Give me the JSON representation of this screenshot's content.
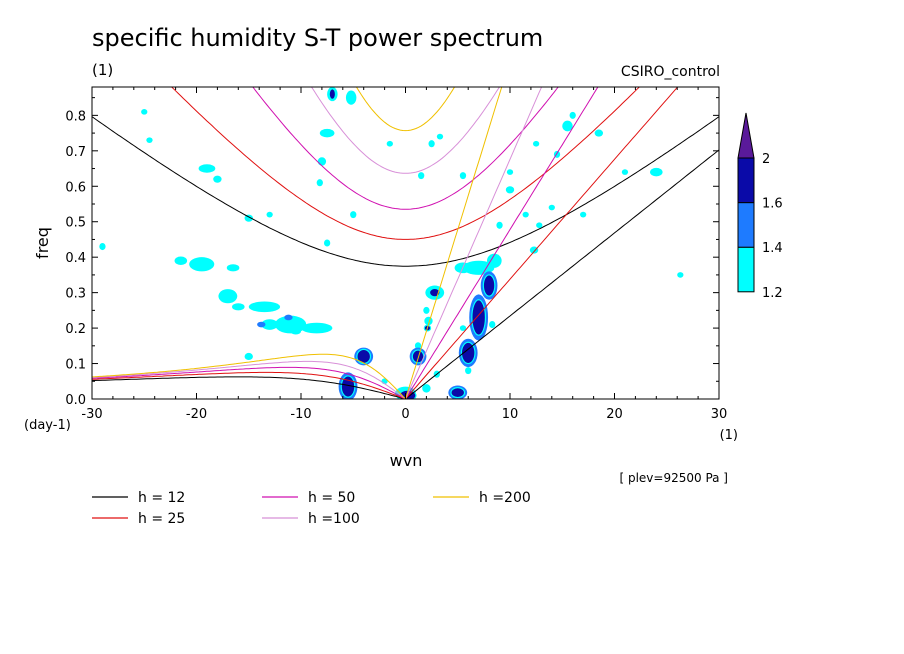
{
  "chart_data": {
    "type": "heatmap",
    "title": "specific humidity S-T power spectrum",
    "subtitle_left": "(1)",
    "subtitle_right": "CSIRO_control",
    "xlabel": "wvn",
    "ylabel": "freq",
    "x_unit": "(1)",
    "y_unit": "(day-1)",
    "note": "[ plev=92500 Pa ]",
    "xlim": [
      -30,
      30
    ],
    "ylim": [
      0,
      0.88
    ],
    "x_ticks": [
      -30,
      -20,
      -10,
      0,
      10,
      20,
      30
    ],
    "x_tick_labels": [
      "-30",
      "-20",
      "-10",
      "0",
      "10",
      "20",
      "30"
    ],
    "y_ticks": [
      0,
      0.1,
      0.2,
      0.3,
      0.4,
      0.5,
      0.6,
      0.7,
      0.8
    ],
    "y_tick_labels": [
      "0.0",
      "0.1",
      "0.2",
      "0.3",
      "0.4",
      "0.5",
      "0.6",
      "0.7",
      "0.8"
    ],
    "colorbar": {
      "levels": [
        1.2,
        1.4,
        1.6,
        2
      ],
      "labels": [
        "1.2",
        "1.4",
        "1.6",
        "2"
      ],
      "colors": [
        "#00ffff",
        "#1e7bff",
        "#0a0aa8",
        "#5a1a9a"
      ]
    },
    "dispersion_curves": [
      {
        "label": "h = 12",
        "h": 12,
        "color": "#000000"
      },
      {
        "label": "h = 25",
        "h": 25,
        "color": "#e01010"
      },
      {
        "label": "h = 50",
        "h": 50,
        "color": "#d010b0"
      },
      {
        "label": "h =100",
        "h": 100,
        "color": "#d890d8"
      },
      {
        "label": "h =200",
        "h": 200,
        "color": "#f0c000"
      }
    ],
    "contour_regions": [
      {
        "x": -29,
        "y": 0.43,
        "rx": 0.3,
        "ry": 0.01,
        "level": 1.2
      },
      {
        "x": -25,
        "y": 0.81,
        "rx": 0.3,
        "ry": 0.008,
        "level": 1.2
      },
      {
        "x": -24.5,
        "y": 0.73,
        "rx": 0.3,
        "ry": 0.008,
        "level": 1.2
      },
      {
        "x": -19,
        "y": 0.65,
        "rx": 0.8,
        "ry": 0.012,
        "level": 1.2
      },
      {
        "x": -18,
        "y": 0.62,
        "rx": 0.4,
        "ry": 0.01,
        "level": 1.2
      },
      {
        "x": -15,
        "y": 0.51,
        "rx": 0.4,
        "ry": 0.01,
        "level": 1.2
      },
      {
        "x": -13,
        "y": 0.52,
        "rx": 0.3,
        "ry": 0.008,
        "level": 1.2
      },
      {
        "x": -19.5,
        "y": 0.38,
        "rx": 1.2,
        "ry": 0.02,
        "level": 1.2
      },
      {
        "x": -21.5,
        "y": 0.39,
        "rx": 0.6,
        "ry": 0.012,
        "level": 1.2
      },
      {
        "x": -16.5,
        "y": 0.37,
        "rx": 0.6,
        "ry": 0.01,
        "level": 1.2
      },
      {
        "x": -17,
        "y": 0.29,
        "rx": 0.9,
        "ry": 0.02,
        "level": 1.2
      },
      {
        "x": -16,
        "y": 0.26,
        "rx": 0.6,
        "ry": 0.01,
        "level": 1.2
      },
      {
        "x": -13.5,
        "y": 0.26,
        "rx": 1.5,
        "ry": 0.015,
        "level": 1.2
      },
      {
        "x": -13,
        "y": 0.21,
        "rx": 0.8,
        "ry": 0.015,
        "level": 1.2
      },
      {
        "x": -11,
        "y": 0.21,
        "rx": 1.5,
        "ry": 0.025,
        "level": 1.2
      },
      {
        "x": -8.5,
        "y": 0.2,
        "rx": 1.5,
        "ry": 0.015,
        "level": 1.2
      },
      {
        "x": -13.8,
        "y": 0.21,
        "rx": 0.4,
        "ry": 0.008,
        "level": 1.4
      },
      {
        "x": -11.2,
        "y": 0.23,
        "rx": 0.4,
        "ry": 0.008,
        "level": 1.4
      },
      {
        "x": -15,
        "y": 0.12,
        "rx": 0.4,
        "ry": 0.01,
        "level": 1.2
      },
      {
        "x": -10.5,
        "y": 0.19,
        "rx": 0.5,
        "ry": 0.008,
        "level": 1.2
      },
      {
        "x": -7.5,
        "y": 0.44,
        "rx": 0.3,
        "ry": 0.01,
        "level": 1.2
      },
      {
        "x": -5,
        "y": 0.52,
        "rx": 0.3,
        "ry": 0.01,
        "level": 1.2
      },
      {
        "x": -8,
        "y": 0.67,
        "rx": 0.4,
        "ry": 0.012,
        "level": 1.2
      },
      {
        "x": -8.2,
        "y": 0.61,
        "rx": 0.3,
        "ry": 0.01,
        "level": 1.2
      },
      {
        "x": -7.5,
        "y": 0.75,
        "rx": 0.7,
        "ry": 0.012,
        "level": 1.2
      },
      {
        "x": -5.2,
        "y": 0.85,
        "rx": 0.5,
        "ry": 0.02,
        "level": 1.2
      },
      {
        "x": -1.5,
        "y": 0.72,
        "rx": 0.3,
        "ry": 0.008,
        "level": 1.2
      },
      {
        "x": -7,
        "y": 0.86,
        "rx": 0.5,
        "ry": 0.02,
        "level": 1.2
      },
      {
        "x": -7,
        "y": 0.86,
        "rx": 0.3,
        "ry": 0.015,
        "level": 1.6
      },
      {
        "x": 1.5,
        "y": 0.63,
        "rx": 0.3,
        "ry": 0.01,
        "level": 1.2
      },
      {
        "x": 5.5,
        "y": 0.63,
        "rx": 0.3,
        "ry": 0.01,
        "level": 1.2
      },
      {
        "x": 2.5,
        "y": 0.72,
        "rx": 0.3,
        "ry": 0.01,
        "level": 1.2
      },
      {
        "x": 3.3,
        "y": 0.74,
        "rx": 0.3,
        "ry": 0.008,
        "level": 1.2
      },
      {
        "x": 9,
        "y": 0.49,
        "rx": 0.3,
        "ry": 0.01,
        "level": 1.2
      },
      {
        "x": 11.5,
        "y": 0.52,
        "rx": 0.3,
        "ry": 0.008,
        "level": 1.2
      },
      {
        "x": 12.8,
        "y": 0.49,
        "rx": 0.3,
        "ry": 0.008,
        "level": 1.2
      },
      {
        "x": 14,
        "y": 0.54,
        "rx": 0.3,
        "ry": 0.008,
        "level": 1.2
      },
      {
        "x": 17,
        "y": 0.52,
        "rx": 0.3,
        "ry": 0.008,
        "level": 1.2
      },
      {
        "x": 12.3,
        "y": 0.42,
        "rx": 0.4,
        "ry": 0.01,
        "level": 1.2
      },
      {
        "x": 10,
        "y": 0.59,
        "rx": 0.4,
        "ry": 0.01,
        "level": 1.2
      },
      {
        "x": 10,
        "y": 0.64,
        "rx": 0.3,
        "ry": 0.008,
        "level": 1.2
      },
      {
        "x": 12.5,
        "y": 0.72,
        "rx": 0.3,
        "ry": 0.008,
        "level": 1.2
      },
      {
        "x": 14.5,
        "y": 0.69,
        "rx": 0.3,
        "ry": 0.01,
        "level": 1.2
      },
      {
        "x": 15.5,
        "y": 0.77,
        "rx": 0.5,
        "ry": 0.015,
        "level": 1.2
      },
      {
        "x": 16,
        "y": 0.8,
        "rx": 0.3,
        "ry": 0.01,
        "level": 1.2
      },
      {
        "x": 18.5,
        "y": 0.75,
        "rx": 0.4,
        "ry": 0.01,
        "level": 1.2
      },
      {
        "x": 21,
        "y": 0.64,
        "rx": 0.3,
        "ry": 0.008,
        "level": 1.2
      },
      {
        "x": 24,
        "y": 0.64,
        "rx": 0.6,
        "ry": 0.012,
        "level": 1.2
      },
      {
        "x": 26.3,
        "y": 0.35,
        "rx": 0.3,
        "ry": 0.008,
        "level": 1.2
      },
      {
        "x": 7,
        "y": 0.37,
        "rx": 1.5,
        "ry": 0.02,
        "level": 1.2
      },
      {
        "x": 8.5,
        "y": 0.39,
        "rx": 0.7,
        "ry": 0.02,
        "level": 1.2
      },
      {
        "x": 5.5,
        "y": 0.37,
        "rx": 0.8,
        "ry": 0.015,
        "level": 1.2
      },
      {
        "x": 2.8,
        "y": 0.3,
        "rx": 0.9,
        "ry": 0.02,
        "level": 1.2
      },
      {
        "x": 2.8,
        "y": 0.3,
        "rx": 0.5,
        "ry": 0.012,
        "level": 1.6
      },
      {
        "x": 2,
        "y": 0.25,
        "rx": 0.3,
        "ry": 0.01,
        "level": 1.2
      },
      {
        "x": 2.2,
        "y": 0.22,
        "rx": 0.4,
        "ry": 0.012,
        "level": 1.2
      },
      {
        "x": 2.1,
        "y": 0.2,
        "rx": 0.3,
        "ry": 0.008,
        "level": 1.6
      },
      {
        "x": 1.2,
        "y": 0.15,
        "rx": 0.3,
        "ry": 0.01,
        "level": 1.2
      },
      {
        "x": 1.2,
        "y": 0.12,
        "rx": 0.8,
        "ry": 0.025,
        "level": 1.4
      },
      {
        "x": 1.2,
        "y": 0.12,
        "rx": 0.55,
        "ry": 0.018,
        "level": 1.6
      },
      {
        "x": 0,
        "y": 0.015,
        "rx": 1.0,
        "ry": 0.02,
        "level": 1.2
      },
      {
        "x": 0.2,
        "y": 0.01,
        "rx": 0.8,
        "ry": 0.015,
        "level": 1.6
      },
      {
        "x": 2,
        "y": 0.03,
        "rx": 0.4,
        "ry": 0.012,
        "level": 1.2
      },
      {
        "x": 3,
        "y": 0.07,
        "rx": 0.3,
        "ry": 0.01,
        "level": 1.2
      },
      {
        "x": 6,
        "y": 0.08,
        "rx": 0.3,
        "ry": 0.01,
        "level": 1.2
      },
      {
        "x": -2,
        "y": 0.05,
        "rx": 0.3,
        "ry": 0.008,
        "level": 1.2
      },
      {
        "x": -4,
        "y": 0.12,
        "rx": 0.9,
        "ry": 0.025,
        "level": 1.4
      },
      {
        "x": -4,
        "y": 0.12,
        "rx": 0.65,
        "ry": 0.02,
        "level": 1.6
      },
      {
        "x": -5.5,
        "y": 0.035,
        "rx": 0.9,
        "ry": 0.04,
        "level": 1.4
      },
      {
        "x": -5.5,
        "y": 0.035,
        "rx": 0.65,
        "ry": 0.03,
        "level": 1.6
      },
      {
        "x": 5,
        "y": 0.018,
        "rx": 0.9,
        "ry": 0.02,
        "level": 1.4
      },
      {
        "x": 5,
        "y": 0.018,
        "rx": 0.65,
        "ry": 0.014,
        "level": 1.6
      },
      {
        "x": 6,
        "y": 0.13,
        "rx": 0.9,
        "ry": 0.04,
        "level": 1.4
      },
      {
        "x": 6,
        "y": 0.13,
        "rx": 0.65,
        "ry": 0.03,
        "level": 1.6
      },
      {
        "x": 7,
        "y": 0.23,
        "rx": 0.9,
        "ry": 0.065,
        "level": 1.4
      },
      {
        "x": 7,
        "y": 0.23,
        "rx": 0.65,
        "ry": 0.05,
        "level": 1.6
      },
      {
        "x": 8,
        "y": 0.32,
        "rx": 0.8,
        "ry": 0.04,
        "level": 1.4
      },
      {
        "x": 8,
        "y": 0.32,
        "rx": 0.55,
        "ry": 0.03,
        "level": 1.6
      },
      {
        "x": 8.3,
        "y": 0.21,
        "rx": 0.3,
        "ry": 0.01,
        "level": 1.2
      },
      {
        "x": 5.5,
        "y": 0.2,
        "rx": 0.3,
        "ry": 0.008,
        "level": 1.2
      }
    ]
  }
}
